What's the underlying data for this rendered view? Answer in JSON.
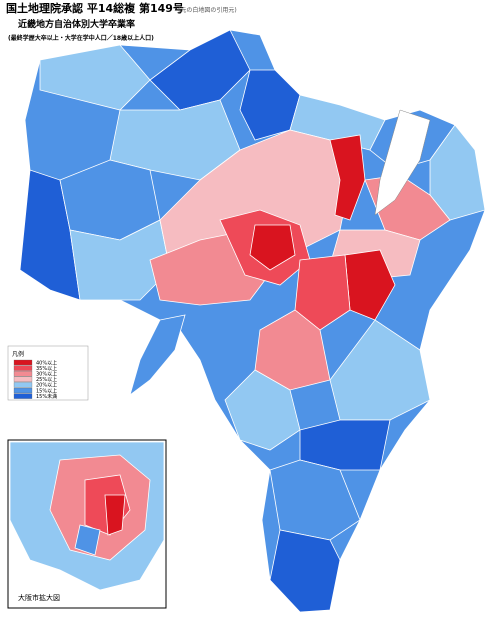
{
  "header": {
    "title": "国土地理院承認 平14総複 第149号",
    "title_note": "(元の白地図の引用元)",
    "subtitle": "近畿地方自治体別大学卒業率",
    "subtitle_note": "(最終学歴大卒以上・大学在学中人口／18歳以上人口)"
  },
  "legend": {
    "title": "凡例",
    "items": [
      {
        "label": "40%以上",
        "color": "#d9141f"
      },
      {
        "label": "35%以上",
        "color": "#ee4a58"
      },
      {
        "label": "30%以上",
        "color": "#f28a92"
      },
      {
        "label": "25%以上",
        "color": "#f6bcc1"
      },
      {
        "label": "20%以上",
        "color": "#92c8f2"
      },
      {
        "label": "15%以上",
        "color": "#4f93e6"
      },
      {
        "label": "15%未満",
        "color": "#1f5fd6"
      }
    ]
  },
  "inset": {
    "title": "大阪市拡大図"
  }
}
